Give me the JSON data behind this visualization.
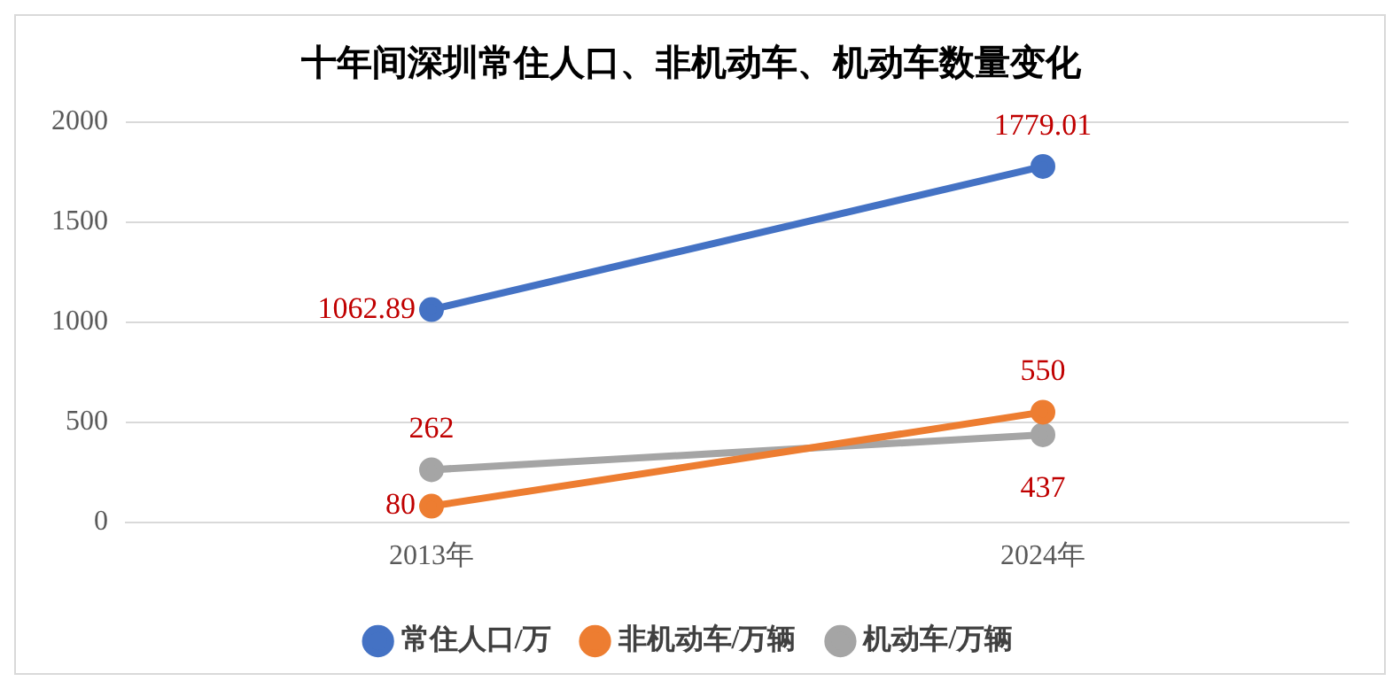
{
  "chart_data": {
    "type": "line",
    "title": "十年间深圳常住人口、非机动车、机动车数量变化",
    "categories": [
      "2013年",
      "2024年"
    ],
    "series": [
      {
        "name": "常住人口/万",
        "color": "#4472c4",
        "values": [
          1062.89,
          1779.01
        ]
      },
      {
        "name": "非机动车/万辆",
        "color": "#ed7d31",
        "values": [
          80,
          550
        ]
      },
      {
        "name": "机动车/万辆",
        "color": "#a5a5a5",
        "values": [
          262,
          437
        ]
      }
    ],
    "ylim": [
      0,
      2000
    ],
    "yticks": [
      0,
      500,
      1000,
      1500,
      2000
    ],
    "grid": "y",
    "legend": "bottom",
    "marker": "circle",
    "line_style": "solid",
    "data_labels": true
  }
}
